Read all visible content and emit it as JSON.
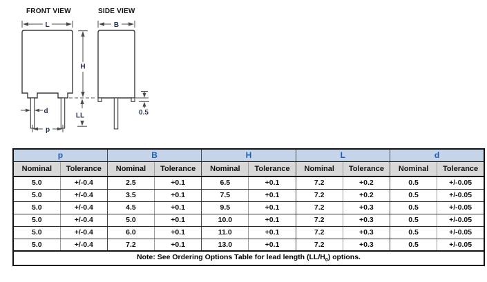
{
  "diagram": {
    "front_view_title": "FRONT VIEW",
    "side_view_title": "SIDE VIEW",
    "labels": {
      "L": "L",
      "B": "B",
      "H": "H",
      "LL": "LL",
      "d": "d",
      "p": "p",
      "standoff": "0.5"
    }
  },
  "table": {
    "groups": [
      {
        "label": "p",
        "sub": [
          "Nominal",
          "Tolerance"
        ]
      },
      {
        "label": "B",
        "sub": [
          "Nominal",
          "Tolerance"
        ]
      },
      {
        "label": "H",
        "sub": [
          "Nominal",
          "Tolerance"
        ]
      },
      {
        "label": "L",
        "sub": [
          "Nominal",
          "Tolerance"
        ]
      },
      {
        "label": "d",
        "sub": [
          "Nominal",
          "Tolerance"
        ]
      }
    ],
    "rows": [
      [
        "5.0",
        "+/-0.4",
        "2.5",
        "+0.1",
        "6.5",
        "+0.1",
        "7.2",
        "+0.2",
        "0.5",
        "+/-0.05"
      ],
      [
        "5.0",
        "+/-0.4",
        "3.5",
        "+0.1",
        "7.5",
        "+0.1",
        "7.2",
        "+0.2",
        "0.5",
        "+/-0.05"
      ],
      [
        "5.0",
        "+/-0.4",
        "4.5",
        "+0.1",
        "9.5",
        "+0.1",
        "7.2",
        "+0.3",
        "0.5",
        "+/-0.05"
      ],
      [
        "5.0",
        "+/-0.4",
        "5.0",
        "+0.1",
        "10.0",
        "+0.1",
        "7.2",
        "+0.3",
        "0.5",
        "+/-0.05"
      ],
      [
        "5.0",
        "+/-0.4",
        "6.0",
        "+0.1",
        "11.0",
        "+0.1",
        "7.2",
        "+0.3",
        "0.5",
        "+/-0.05"
      ],
      [
        "5.0",
        "+/-0.4",
        "7.2",
        "+0.1",
        "13.0",
        "+0.1",
        "7.2",
        "+0.3",
        "0.5",
        "+/-0.05"
      ]
    ],
    "note": {
      "prefix": "Note: See Ordering Options Table for lead length (LL/H",
      "sub": "0",
      "suffix": ") options."
    }
  },
  "colors": {
    "group-header-bg": "#c6d4ea",
    "group-header-text": "#1e5eb0",
    "subheader-bg": "#d8d8d8",
    "table-border": "#111111",
    "diagram-line": "#3c3c3c",
    "page-bg": "#ffffff"
  }
}
